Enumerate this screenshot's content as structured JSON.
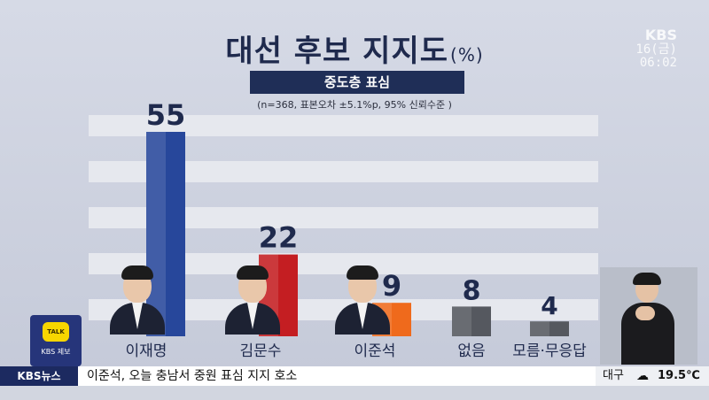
{
  "header": {
    "title": "대선 후보 지지도",
    "title_unit": "(%)",
    "subtitle": "중도층 표심",
    "note": "(n=368, 표본오차 ±5.1%p, 95% 신뢰수준 )"
  },
  "broadcaster": {
    "logo": "KBS",
    "date": "16(금)",
    "time": "06:02"
  },
  "badge": {
    "talk": "TALK",
    "label": "KBS 제보"
  },
  "ticker": {
    "tag": "KBS뉴스",
    "headline": "이준석, 오늘 충남서 중원 표심 지지 호소",
    "city": "대구",
    "weather_icon": "cloud-icon",
    "temperature": "19.5℃"
  },
  "colors": {
    "lee_jaemyung": "#27479b",
    "kim_moonsoo": "#c41e22",
    "lee_junseok": "#ef6a1c",
    "none": "#55585f",
    "unknown": "#55585f",
    "navy": "#1f2e57"
  },
  "chart_data": {
    "type": "bar",
    "title": "대선 후보 지지도",
    "subtitle": "중도층 표심",
    "categories": [
      "이재명",
      "김문수",
      "이준석",
      "없음",
      "모름·무응답"
    ],
    "values": [
      55,
      22,
      9,
      8,
      4
    ],
    "ylim": [
      0,
      60
    ],
    "grid": true,
    "legend": "none"
  }
}
